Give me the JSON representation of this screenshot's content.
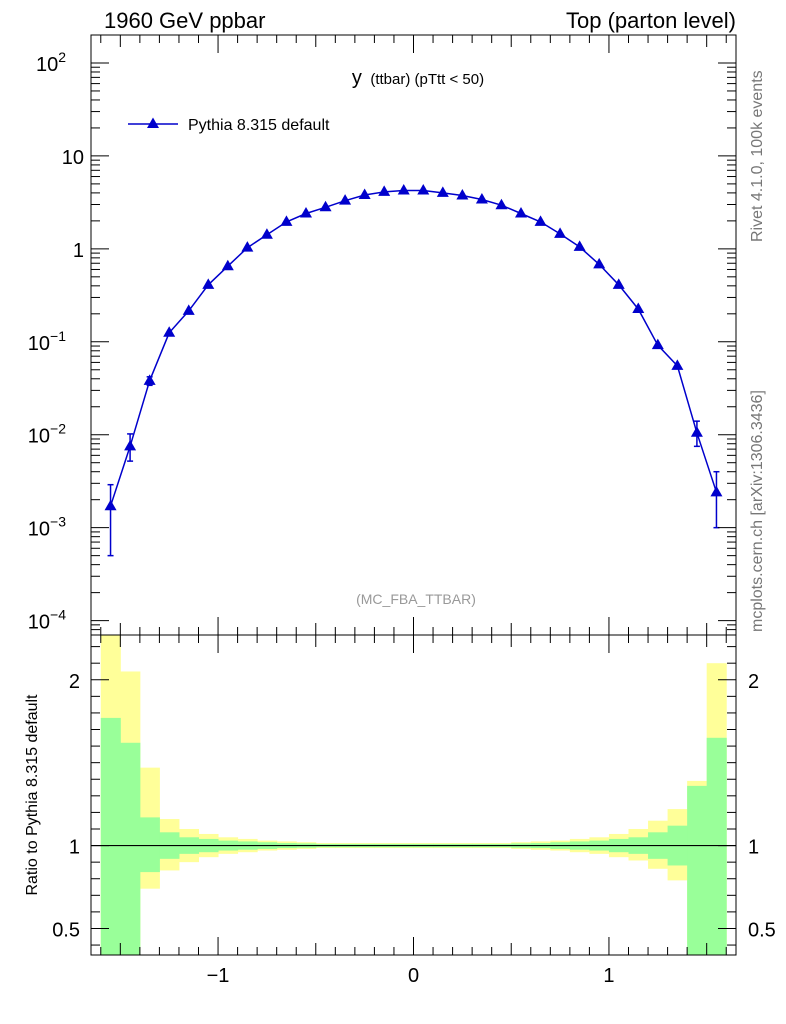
{
  "header": {
    "left": "1960 GeV ppbar",
    "right": "Top (parton level)"
  },
  "side_labels": {
    "rivet": "Rivet 4.1.0,  100k events",
    "mcplots": "mcplots.cern.ch [arXiv:1306.3436]"
  },
  "chart_data": [
    {
      "type": "line",
      "title_main": "y",
      "title_sub": "(ttbar)  (pTtt < 50)",
      "watermark": "(MC_FBA_TTBAR)",
      "legend": {
        "placement": "top-left",
        "entries": [
          "Pythia 8.315 default"
        ]
      },
      "yscale": "log",
      "xlim": [
        -1.65,
        1.65
      ],
      "ylim": [
        7e-05,
        200
      ],
      "yticks": [
        {
          "v": 0.0001,
          "base": "10",
          "exp": "−4"
        },
        {
          "v": 0.001,
          "base": "10",
          "exp": "−3"
        },
        {
          "v": 0.01,
          "base": "10",
          "exp": "−2"
        },
        {
          "v": 0.1,
          "base": "10",
          "exp": "−1"
        },
        {
          "v": 1,
          "base": "1",
          "exp": ""
        },
        {
          "v": 10,
          "base": "10",
          "exp": ""
        },
        {
          "v": 100,
          "base": "10",
          "exp": "2"
        }
      ],
      "color": "#0000cc",
      "series": [
        {
          "name": "Pythia 8.315 default",
          "x": [
            -1.55,
            -1.45,
            -1.35,
            -1.25,
            -1.15,
            -1.05,
            -0.95,
            -0.85,
            -0.75,
            -0.65,
            -0.55,
            -0.45,
            -0.35,
            -0.25,
            -0.15,
            -0.05,
            0.05,
            0.15,
            0.25,
            0.35,
            0.45,
            0.55,
            0.65,
            0.75,
            0.85,
            0.95,
            1.05,
            1.15,
            1.25,
            1.35,
            1.45,
            1.55
          ],
          "y": [
            0.0017,
            0.0075,
            0.038,
            0.125,
            0.215,
            0.41,
            0.65,
            1.03,
            1.42,
            1.95,
            2.4,
            2.8,
            3.3,
            3.8,
            4.1,
            4.25,
            4.25,
            4.0,
            3.75,
            3.4,
            2.95,
            2.4,
            1.95,
            1.45,
            1.05,
            0.68,
            0.41,
            0.225,
            0.092,
            0.055,
            0.0105,
            0.0024
          ],
          "yerr_low": [
            0.0012,
            0.0023,
            0.004,
            0,
            0,
            0,
            0,
            0,
            0,
            0,
            0,
            0,
            0,
            0,
            0,
            0,
            0,
            0,
            0,
            0,
            0,
            0,
            0,
            0,
            0,
            0,
            0,
            0,
            0,
            0,
            0.003,
            0.0014
          ],
          "yerr_high": [
            0.0012,
            0.0027,
            0.004,
            0,
            0,
            0,
            0,
            0,
            0,
            0,
            0,
            0,
            0,
            0,
            0,
            0,
            0,
            0,
            0,
            0,
            0,
            0,
            0,
            0,
            0,
            0,
            0,
            0,
            0,
            0,
            0.0035,
            0.0016
          ]
        }
      ]
    },
    {
      "type": "area",
      "ylabel": "Ratio to Pythia 8.315 default",
      "xlim": [
        -1.65,
        1.65
      ],
      "ylim": [
        0.34,
        2.27
      ],
      "xticks": [
        {
          "v": -1,
          "label": "−1"
        },
        {
          "v": 0,
          "label": "0"
        },
        {
          "v": 1,
          "label": "1"
        }
      ],
      "yticks": [
        {
          "v": 0.5,
          "label": "0.5"
        },
        {
          "v": 1,
          "label": "1"
        },
        {
          "v": 2,
          "label": "2"
        }
      ],
      "bands": {
        "inner_color": "#99ff99",
        "outer_color": "#ffff99",
        "bin_edges": [
          -1.6,
          -1.5,
          -1.4,
          -1.3,
          -1.2,
          -1.1,
          -1.0,
          -0.9,
          -0.8,
          -0.7,
          -0.6,
          -0.5,
          -0.4,
          -0.3,
          -0.2,
          -0.1,
          0.0,
          0.1,
          0.2,
          0.3,
          0.4,
          0.5,
          0.6,
          0.7,
          0.8,
          0.9,
          1.0,
          1.1,
          1.2,
          1.3,
          1.4,
          1.5,
          1.6
        ],
        "inner_low": [
          0.34,
          0.34,
          0.84,
          0.92,
          0.95,
          0.96,
          0.97,
          0.975,
          0.98,
          0.985,
          0.987,
          0.99,
          0.99,
          0.99,
          0.99,
          0.99,
          0.99,
          0.99,
          0.99,
          0.99,
          0.99,
          0.987,
          0.985,
          0.98,
          0.975,
          0.97,
          0.96,
          0.95,
          0.92,
          0.88,
          0.34,
          0.34
        ],
        "inner_high": [
          1.77,
          1.62,
          1.17,
          1.08,
          1.05,
          1.04,
          1.03,
          1.025,
          1.02,
          1.015,
          1.013,
          1.01,
          1.01,
          1.01,
          1.01,
          1.01,
          1.01,
          1.01,
          1.01,
          1.01,
          1.01,
          1.013,
          1.015,
          1.02,
          1.025,
          1.03,
          1.04,
          1.05,
          1.08,
          1.12,
          1.36,
          1.65
        ],
        "outer_low": [
          0.34,
          0.34,
          0.74,
          0.85,
          0.9,
          0.93,
          0.95,
          0.96,
          0.97,
          0.975,
          0.98,
          0.985,
          0.985,
          0.985,
          0.985,
          0.985,
          0.985,
          0.985,
          0.985,
          0.985,
          0.985,
          0.98,
          0.975,
          0.97,
          0.96,
          0.95,
          0.93,
          0.91,
          0.86,
          0.79,
          0.41,
          0.4
        ],
        "outer_high": [
          2.27,
          2.05,
          1.47,
          1.16,
          1.1,
          1.07,
          1.05,
          1.04,
          1.03,
          1.025,
          1.02,
          1.015,
          1.015,
          1.015,
          1.015,
          1.015,
          1.015,
          1.015,
          1.015,
          1.015,
          1.015,
          1.02,
          1.025,
          1.03,
          1.04,
          1.05,
          1.07,
          1.1,
          1.15,
          1.22,
          1.39,
          2.1
        ]
      },
      "reference_line": 1
    }
  ]
}
